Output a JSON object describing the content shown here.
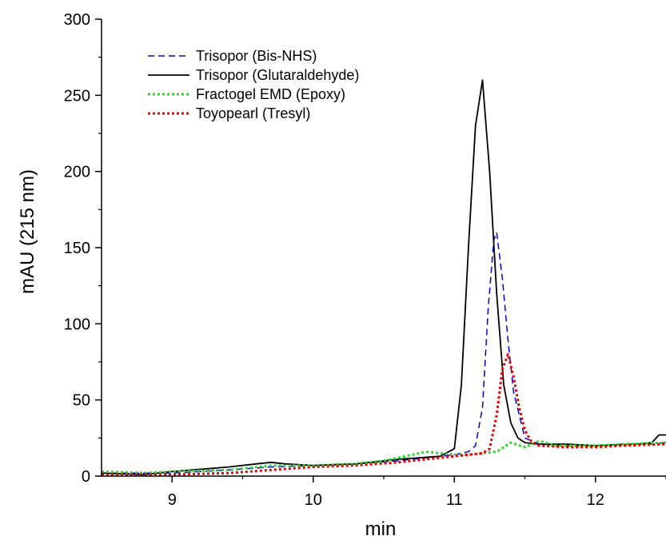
{
  "chart_data": {
    "type": "line",
    "title": "",
    "xlabel": "min",
    "ylabel": "mAU (215 nm)",
    "xlim": [
      8.5,
      12.5
    ],
    "ylim": [
      0,
      300
    ],
    "x_ticks": [
      9,
      10,
      11,
      12
    ],
    "y_ticks": [
      0,
      50,
      100,
      150,
      200,
      250,
      300
    ],
    "grid": false,
    "legend_position": "top-left",
    "series": [
      {
        "name": "Trisopor (Bis-NHS)",
        "color": "#0000dd",
        "dash": "dashed",
        "x": [
          8.5,
          8.8,
          9.0,
          9.4,
          9.7,
          10.0,
          10.3,
          10.6,
          10.9,
          11.0,
          11.1,
          11.15,
          11.2,
          11.24,
          11.28,
          11.3,
          11.34,
          11.38,
          11.42,
          11.5,
          11.6,
          11.8,
          12.0,
          12.2,
          12.4,
          12.5
        ],
        "y": [
          2,
          2,
          2,
          4,
          6,
          7,
          8,
          10,
          13,
          14,
          16,
          20,
          45,
          110,
          155,
          160,
          130,
          90,
          55,
          25,
          21,
          20,
          20,
          21,
          21,
          22
        ]
      },
      {
        "name": "Trisopor (Glutaraldehyde)",
        "color": "#000000",
        "dash": "solid",
        "x": [
          8.5,
          8.8,
          9.0,
          9.4,
          9.6,
          9.7,
          9.8,
          10.0,
          10.3,
          10.6,
          10.9,
          11.0,
          11.05,
          11.1,
          11.15,
          11.2,
          11.25,
          11.3,
          11.35,
          11.4,
          11.45,
          11.5,
          11.6,
          11.8,
          12.0,
          12.3,
          12.4,
          12.45,
          12.5
        ],
        "y": [
          2,
          1,
          3,
          6,
          8,
          9,
          8,
          7,
          8,
          11,
          13,
          18,
          60,
          150,
          230,
          260,
          200,
          120,
          60,
          35,
          25,
          22,
          21,
          21,
          20,
          21,
          22,
          27,
          27
        ]
      },
      {
        "name": "Fractogel EMD (Epoxy)",
        "color": "#22dd22",
        "dash": "dotted",
        "x": [
          8.5,
          8.8,
          9.0,
          9.4,
          9.7,
          10.0,
          10.3,
          10.5,
          10.7,
          10.8,
          10.9,
          11.0,
          11.1,
          11.2,
          11.3,
          11.4,
          11.5,
          11.6,
          11.65,
          11.7,
          11.8,
          12.0,
          12.2,
          12.5
        ],
        "y": [
          3,
          2,
          3,
          4,
          7,
          7,
          8,
          10,
          14,
          16,
          15,
          14,
          14,
          15,
          16,
          22,
          19,
          23,
          22,
          20,
          20,
          20,
          21,
          22
        ]
      },
      {
        "name": "Toyopearl (Tresyl)",
        "color": "#ee0000",
        "dash": "dotted",
        "x": [
          8.5,
          8.8,
          9.0,
          9.4,
          9.7,
          10.0,
          10.3,
          10.6,
          10.9,
          11.0,
          11.1,
          11.2,
          11.25,
          11.3,
          11.34,
          11.38,
          11.42,
          11.46,
          11.5,
          11.55,
          11.6,
          11.8,
          12.0,
          12.2,
          12.5
        ],
        "y": [
          1,
          1,
          1,
          2,
          4,
          6,
          7,
          9,
          12,
          13,
          14,
          15,
          18,
          40,
          70,
          80,
          65,
          45,
          30,
          22,
          20,
          19,
          19,
          20,
          21
        ]
      }
    ]
  }
}
